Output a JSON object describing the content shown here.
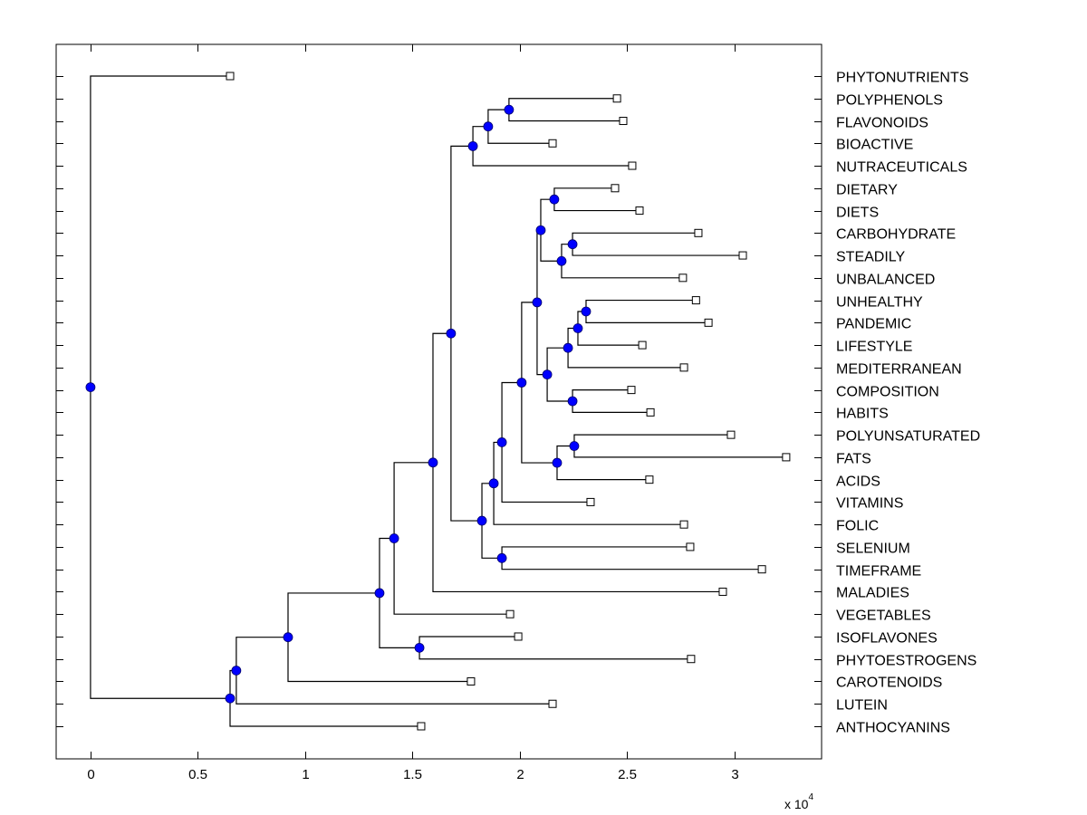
{
  "chart_data": {
    "type": "dendrogram",
    "title": "",
    "xlabel": "",
    "ylabel": "",
    "x_multiplier_label": "x 10",
    "x_multiplier_exponent": "4",
    "xlim": [
      -0.16,
      3.405
    ],
    "xticks": [
      0,
      0.5,
      1,
      1.5,
      2,
      2.5,
      3
    ],
    "xtick_labels": [
      "0",
      "0.5",
      "1",
      "1.5",
      "2",
      "2.5",
      "3"
    ],
    "grid": false,
    "legend": "none",
    "colors": {
      "node": "#0000ff",
      "leaf": "#ffffff",
      "line": "#000000"
    },
    "leaves": [
      {
        "label": "PHYTONUTRIENTS",
        "x": 0.65
      },
      {
        "label": "POLYPHENOLS",
        "x": 2.452
      },
      {
        "label": "FLAVONOIDS",
        "x": 2.481
      },
      {
        "label": "BIOACTIVE",
        "x": 2.152
      },
      {
        "label": "NUTRACEUTICALS",
        "x": 2.523
      },
      {
        "label": "DIETARY",
        "x": 2.443
      },
      {
        "label": "DIETS",
        "x": 2.557
      },
      {
        "label": "CARBOHYDRATE",
        "x": 2.831
      },
      {
        "label": "STEADILY",
        "x": 3.038
      },
      {
        "label": "UNBALANCED",
        "x": 2.759
      },
      {
        "label": "UNHEALTHY",
        "x": 2.82
      },
      {
        "label": "PANDEMIC",
        "x": 2.878
      },
      {
        "label": "LIFESTYLE",
        "x": 2.57
      },
      {
        "label": "MEDITERRANEAN",
        "x": 2.764
      },
      {
        "label": "COMPOSITION",
        "x": 2.519
      },
      {
        "label": "HABITS",
        "x": 2.608
      },
      {
        "label": "POLYUNSATURATED",
        "x": 2.983
      },
      {
        "label": "FATS",
        "x": 3.24
      },
      {
        "label": "ACIDS",
        "x": 2.603
      },
      {
        "label": "VITAMINS",
        "x": 2.329
      },
      {
        "label": "FOLIC",
        "x": 2.764
      },
      {
        "label": "SELENIUM",
        "x": 2.793
      },
      {
        "label": "TIMEFRAME",
        "x": 3.127
      },
      {
        "label": "MALADIES",
        "x": 2.945
      },
      {
        "label": "VEGETABLES",
        "x": 1.954
      },
      {
        "label": "ISOFLAVONES",
        "x": 1.992
      },
      {
        "label": "PHYTOESTROGENS",
        "x": 2.797
      },
      {
        "label": "CAROTENOIDS",
        "x": 1.772
      },
      {
        "label": "LUTEIN",
        "x": 2.152
      },
      {
        "label": "ANTHOCYANINS",
        "x": 1.54
      }
    ],
    "nodes": [
      {
        "id": "N1",
        "x": 1.949,
        "children": [
          "L1",
          "L2"
        ]
      },
      {
        "id": "N2",
        "x": 1.852,
        "children": [
          "N1",
          "L3"
        ]
      },
      {
        "id": "N3",
        "x": 1.781,
        "children": [
          "N2",
          "L4"
        ]
      },
      {
        "id": "N4",
        "x": 2.16,
        "children": [
          "L5",
          "L6"
        ]
      },
      {
        "id": "N5",
        "x": 2.245,
        "children": [
          "L7",
          "L8"
        ]
      },
      {
        "id": "N6",
        "x": 2.194,
        "children": [
          "N5",
          "L9"
        ]
      },
      {
        "id": "N7",
        "x": 2.097,
        "children": [
          "N4",
          "N6"
        ]
      },
      {
        "id": "N8",
        "x": 2.308,
        "children": [
          "L10",
          "L11"
        ]
      },
      {
        "id": "N9",
        "x": 2.27,
        "children": [
          "N8",
          "L12"
        ]
      },
      {
        "id": "N10",
        "x": 2.224,
        "children": [
          "N9",
          "L13"
        ]
      },
      {
        "id": "N11",
        "x": 2.245,
        "children": [
          "L14",
          "L15"
        ]
      },
      {
        "id": "N12",
        "x": 2.127,
        "children": [
          "N10",
          "N11"
        ]
      },
      {
        "id": "N13",
        "x": 2.08,
        "children": [
          "N7",
          "N12"
        ]
      },
      {
        "id": "N14",
        "x": 2.253,
        "children": [
          "L16",
          "L17"
        ]
      },
      {
        "id": "N15",
        "x": 2.173,
        "children": [
          "N14",
          "L18"
        ]
      },
      {
        "id": "N16",
        "x": 2.008,
        "children": [
          "N13",
          "N15"
        ]
      },
      {
        "id": "N17",
        "x": 1.916,
        "children": [
          "N16",
          "L19"
        ]
      },
      {
        "id": "N18",
        "x": 1.878,
        "children": [
          "N17",
          "L20"
        ]
      },
      {
        "id": "N19",
        "x": 1.916,
        "children": [
          "L21",
          "L22"
        ]
      },
      {
        "id": "N20",
        "x": 1.823,
        "children": [
          "N18",
          "N19"
        ]
      },
      {
        "id": "N21",
        "x": 1.679,
        "children": [
          "N3",
          "N20"
        ]
      },
      {
        "id": "N22",
        "x": 1.595,
        "children": [
          "N21",
          "L23"
        ]
      },
      {
        "id": "N23",
        "x": 1.414,
        "children": [
          "N22",
          "L24"
        ]
      },
      {
        "id": "N24",
        "x": 1.532,
        "children": [
          "L25",
          "L26"
        ]
      },
      {
        "id": "N25",
        "x": 1.346,
        "children": [
          "N23",
          "N24"
        ]
      },
      {
        "id": "N26",
        "x": 0.92,
        "children": [
          "N25",
          "L27"
        ]
      },
      {
        "id": "N27",
        "x": 0.679,
        "children": [
          "N26",
          "L28"
        ]
      },
      {
        "id": "N28",
        "x": 0.65,
        "children": [
          "N27",
          "L29"
        ]
      },
      {
        "id": "N29",
        "x": 0.0,
        "children": [
          "L0",
          "N28"
        ]
      }
    ]
  }
}
